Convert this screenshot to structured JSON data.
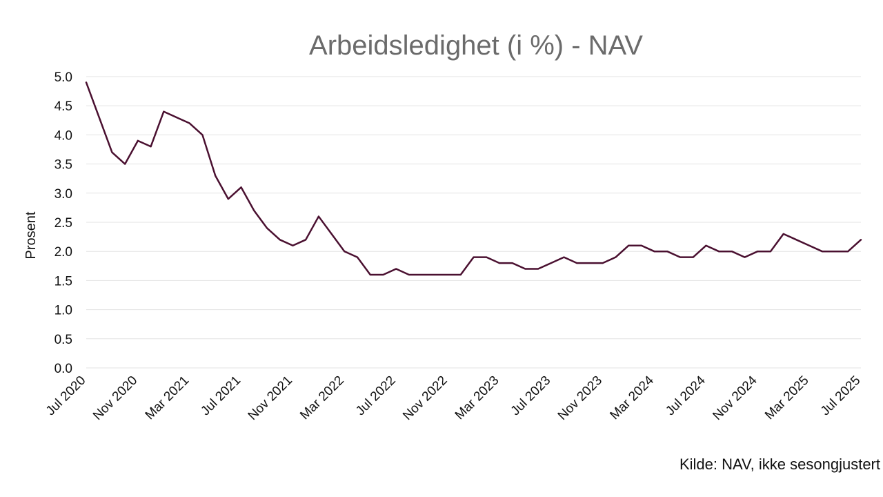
{
  "chart_data": {
    "type": "line",
    "title": "Arbeidsledighet (i %) - NAV",
    "ylabel": "Prosent",
    "xlabel": "",
    "ylim": [
      0,
      5
    ],
    "yticks": [
      "0.0",
      "0.5",
      "1.0",
      "1.5",
      "2.0",
      "2.5",
      "3.0",
      "3.5",
      "4.0",
      "4.5",
      "5.0"
    ],
    "x_tick_labels": [
      "Jul 2020",
      "Nov 2020",
      "Mar 2021",
      "Jul 2021",
      "Nov 2021",
      "Mar 2022",
      "Jul 2022",
      "Nov 2022",
      "Mar 2023",
      "Jul 2023",
      "Nov 2023",
      "Mar 2024",
      "Jul 2024",
      "Nov 2024",
      "Mar 2025",
      "Jul 2025"
    ],
    "grid": true,
    "line_color": "#4a1030",
    "series": [
      {
        "x": [
          "2020-07",
          "2020-08",
          "2020-09",
          "2020-10",
          "2020-11",
          "2020-12",
          "2021-01",
          "2021-02",
          "2021-03",
          "2021-04",
          "2021-05",
          "2021-06",
          "2021-07",
          "2021-08",
          "2021-09",
          "2021-10",
          "2021-11",
          "2021-12",
          "2022-01",
          "2022-02",
          "2022-03",
          "2022-04",
          "2022-05",
          "2022-06",
          "2022-07",
          "2022-08",
          "2022-09",
          "2022-10",
          "2022-11",
          "2022-12",
          "2023-01",
          "2023-02",
          "2023-03",
          "2023-04",
          "2023-05",
          "2023-06",
          "2023-07",
          "2023-08",
          "2023-09",
          "2023-10",
          "2023-11",
          "2023-12",
          "2024-01",
          "2024-02",
          "2024-03",
          "2024-04",
          "2024-05",
          "2024-06",
          "2024-07",
          "2024-08",
          "2024-09",
          "2024-10",
          "2024-11",
          "2024-12",
          "2025-01",
          "2025-02",
          "2025-03",
          "2025-04",
          "2025-05",
          "2025-06",
          "2025-07"
        ],
        "values": [
          4.9,
          4.3,
          3.7,
          3.5,
          3.9,
          3.8,
          4.4,
          4.3,
          4.2,
          4.0,
          3.3,
          2.9,
          3.1,
          2.7,
          2.4,
          2.2,
          2.1,
          2.2,
          2.6,
          2.3,
          2.0,
          1.9,
          1.6,
          1.6,
          1.7,
          1.6,
          1.6,
          1.6,
          1.6,
          1.6,
          1.9,
          1.9,
          1.8,
          1.8,
          1.7,
          1.7,
          1.8,
          1.9,
          1.8,
          1.8,
          1.8,
          1.9,
          2.1,
          2.1,
          2.0,
          2.0,
          1.9,
          1.9,
          2.1,
          2.0,
          2.0,
          1.9,
          2.0,
          2.0,
          2.3,
          2.2,
          2.1,
          2.0,
          2.0,
          2.0,
          2.2
        ]
      }
    ]
  },
  "source_note": "Kilde: NAV, ikke sesongjustert"
}
